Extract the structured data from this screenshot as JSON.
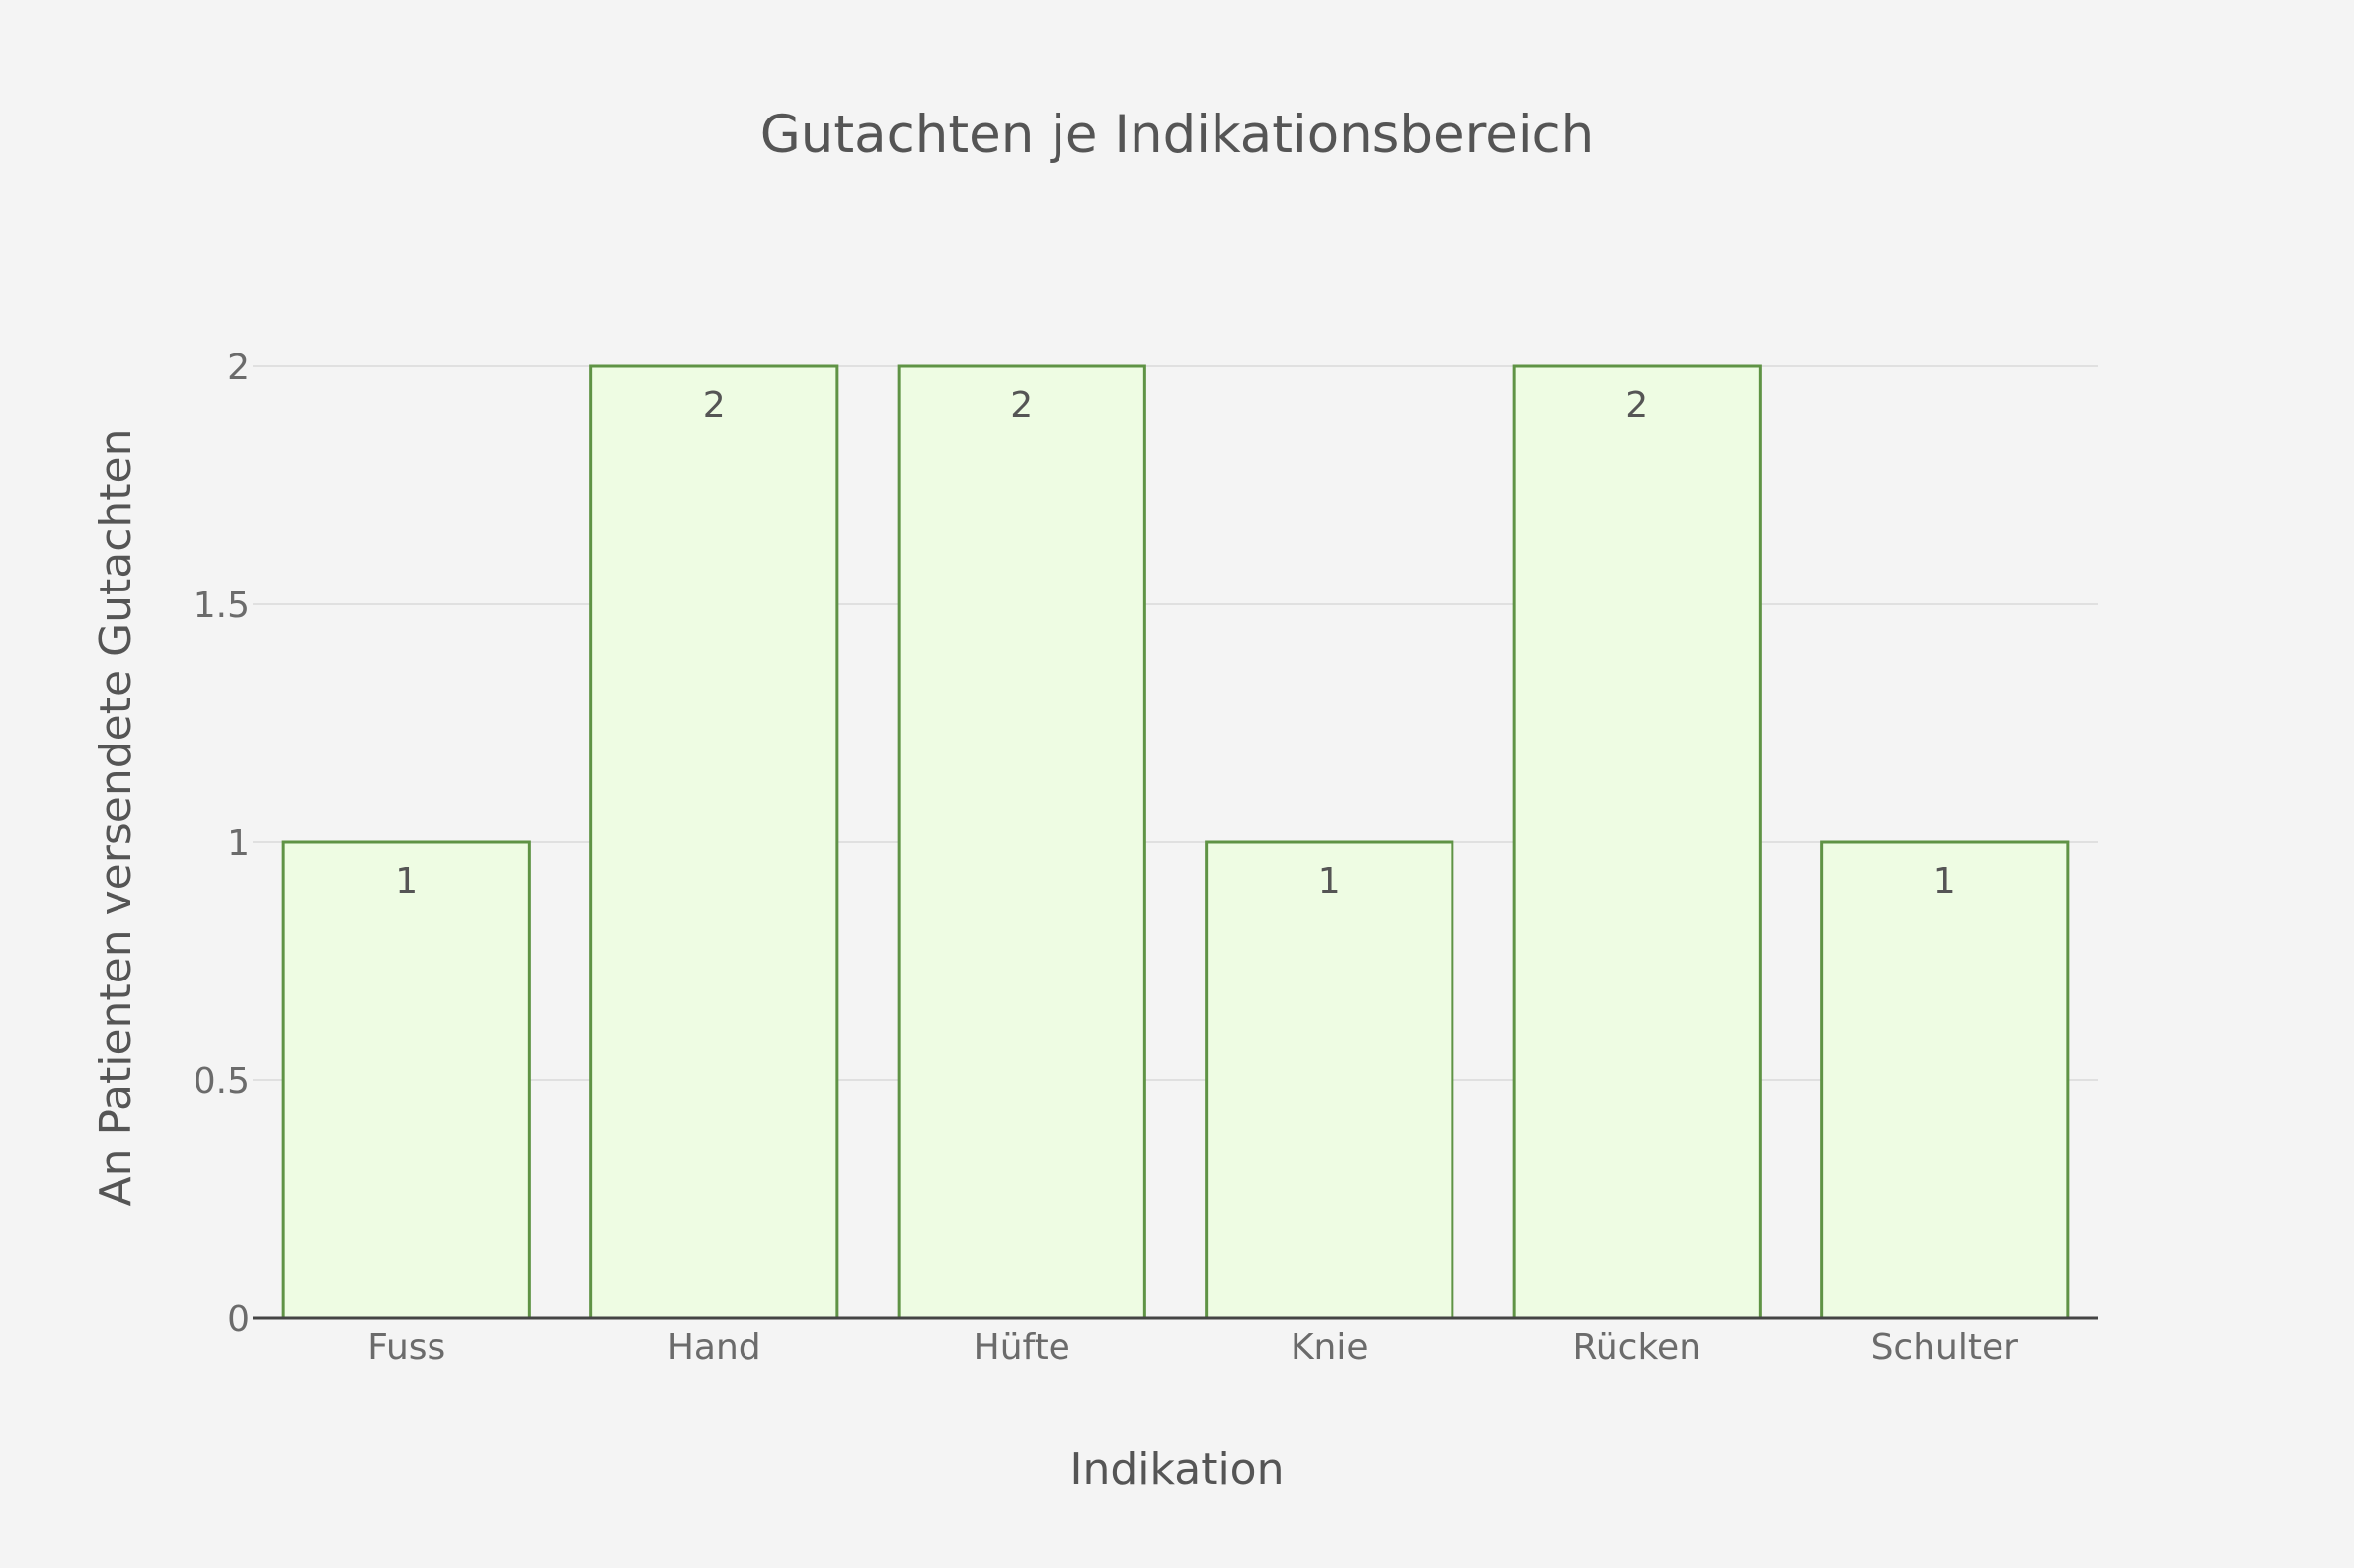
{
  "chart_data": {
    "type": "bar",
    "title": "Gutachten je Indikationsbereich",
    "xlabel": "Indikation",
    "ylabel": "An Patienten versendete Gutachten",
    "categories": [
      "Fuss",
      "Hand",
      "Hüfte",
      "Knie",
      "Rücken",
      "Schulter"
    ],
    "values": [
      1,
      2,
      2,
      1,
      2,
      1
    ],
    "value_labels": [
      "1",
      "2",
      "2",
      "1",
      "2",
      "1"
    ],
    "y_ticks": [
      "0",
      "0.5",
      "1",
      "1.5",
      "2"
    ],
    "ylim": [
      0,
      2
    ],
    "grid": true,
    "legend": "none",
    "colors": {
      "bar_fill": "#eefce3",
      "bar_stroke": "#5f9345",
      "grid": "#e0e0e0",
      "axis": "#444444",
      "background": "#f4f4f4"
    }
  }
}
